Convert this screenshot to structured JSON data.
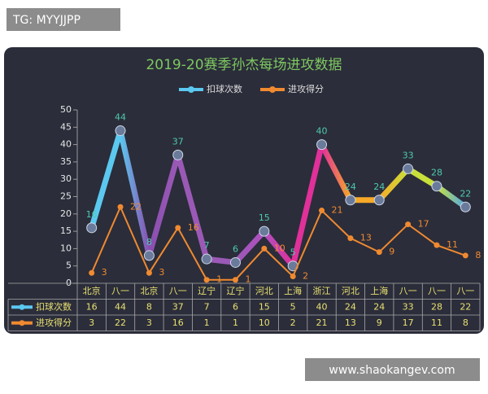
{
  "watermarks": [
    "TG: MYYJJPP",
    "www.shaokangev.com"
  ],
  "chart_data": {
    "type": "line",
    "title": "2019-20赛季孙杰每场进攻数据",
    "categories": [
      "北京",
      "八一",
      "北京",
      "八一",
      "辽宁",
      "辽宁",
      "河北",
      "上海",
      "浙江",
      "河北",
      "上海",
      "八一",
      "八一",
      "八一"
    ],
    "series": [
      {
        "name": "扣球次数",
        "color": [
          "#5bc8f0",
          "#5bc8f0",
          "#8a4fb0",
          "#9b59b6",
          "#9b59b6",
          "#9b59b6",
          "#b04fc0",
          "#e0309a",
          "#e0309a",
          "#f7a928",
          "#f7a928",
          "#c8e03a",
          "#c8e03a",
          "#4fa8e8"
        ],
        "values": [
          16,
          44,
          8,
          37,
          7,
          6,
          15,
          5,
          40,
          24,
          24,
          33,
          28,
          22
        ]
      },
      {
        "name": "进攻得分",
        "color": "#f08a30",
        "values": [
          3,
          22,
          3,
          16,
          1,
          1,
          10,
          2,
          21,
          13,
          9,
          17,
          11,
          8
        ]
      }
    ],
    "ylim": [
      0,
      50
    ],
    "yticks": [
      0,
      5,
      10,
      15,
      20,
      25,
      30,
      35,
      40,
      45,
      50
    ],
    "grid": false,
    "legend": "top"
  }
}
